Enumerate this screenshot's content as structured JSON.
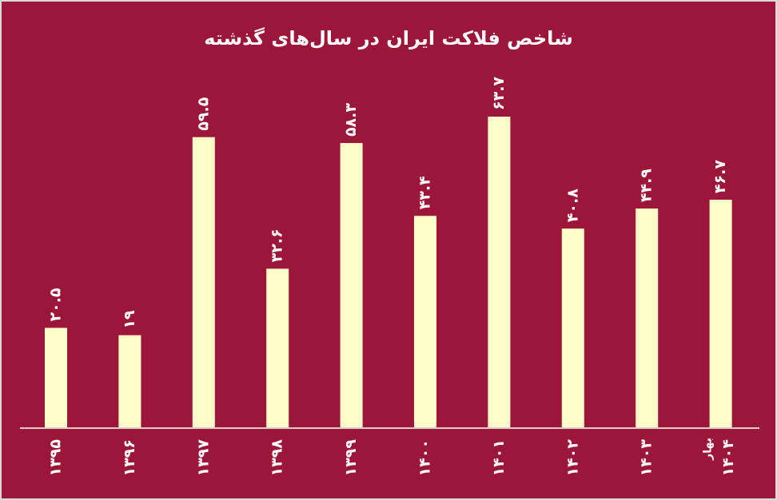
{
  "colors": {
    "background": "#9c1639",
    "bar": "#fffdc9",
    "text": "#ffffff",
    "axis": "#d0d0d0",
    "border": "#d9d9d9"
  },
  "chart_data": {
    "type": "bar",
    "title": "شاخص فلاکت ایران در سال‌های گذشته",
    "xlabel": "",
    "ylabel": "",
    "grid": false,
    "categories": [
      "۱۳۹۵",
      "۱۳۹۶",
      "۱۳۹۷",
      "۱۳۹۸",
      "۱۳۹۹",
      "۱۴۰۰",
      "۱۴۰۱",
      "۱۴۰۲",
      "۱۴۰۳",
      "۱۴۰۴ بهار"
    ],
    "category_lines": [
      [
        "۱۳۹۵"
      ],
      [
        "۱۳۹۶"
      ],
      [
        "۱۳۹۷"
      ],
      [
        "۱۳۹۸"
      ],
      [
        "۱۳۹۹"
      ],
      [
        "۱۴۰۰"
      ],
      [
        "۱۴۰۱"
      ],
      [
        "۱۴۰۲"
      ],
      [
        "۱۴۰۳"
      ],
      [
        "بهار",
        "۱۴۰۴"
      ]
    ],
    "values": [
      20.5,
      19,
      59.5,
      32.6,
      58.3,
      43.4,
      63.7,
      40.8,
      44.9,
      46.7
    ],
    "data_labels": [
      "۲۰.۵",
      "۱۹",
      "۵۹.۵",
      "۳۲.۶",
      "۵۸.۳",
      "۴۳.۴",
      "۶۳.۷",
      "۴۰.۸",
      "۴۴.۹",
      "۴۶.۷"
    ],
    "ylim": [
      0,
      70
    ]
  }
}
